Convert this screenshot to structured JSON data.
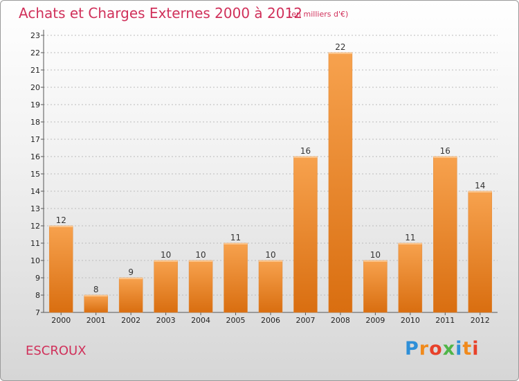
{
  "header": {
    "title": "Achats et Charges Externes 2000 à 2012",
    "subtitle": "(en milliers d'€)"
  },
  "footer": {
    "commune": "ESCROUX",
    "logo_text": "Proxiti"
  },
  "colors": {
    "title": "#d0305a",
    "bar_top": "#f7a24e",
    "bar_bottom": "#d96e10",
    "grid": "#bbbbbb"
  },
  "chart_data": {
    "type": "bar",
    "title": "Achats et Charges Externes 2000 à 2012",
    "subtitle": "(en milliers d'€)",
    "categories": [
      "2000",
      "2001",
      "2002",
      "2003",
      "2004",
      "2005",
      "2006",
      "2007",
      "2008",
      "2009",
      "2010",
      "2011",
      "2012"
    ],
    "values": [
      12,
      8,
      9,
      10,
      10,
      11,
      10,
      16,
      22,
      10,
      11,
      16,
      14
    ],
    "ylim": [
      7,
      23
    ],
    "yticks": [
      "7",
      "8",
      "9",
      "10",
      "11",
      "12",
      "13",
      "14",
      "15",
      "16",
      "17",
      "18",
      "19",
      "20",
      "21",
      "22",
      "23"
    ],
    "grid": true,
    "legend": "none"
  }
}
